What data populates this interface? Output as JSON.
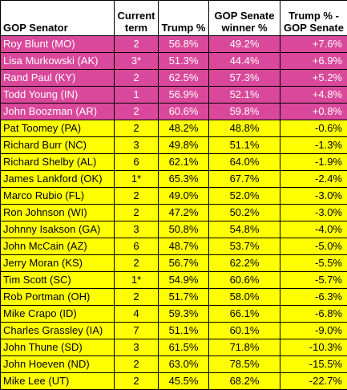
{
  "colors": {
    "positive_row": "#d9489a",
    "negative_row": "#ffff00",
    "positive_text": "#ffffff",
    "negative_text": "#000000",
    "header_bg": "#ffffff",
    "border": "#000000"
  },
  "headers": {
    "senator": "GOP Senator",
    "term_line1": "Current",
    "term_line2": "term",
    "trump": "Trump %",
    "winner_line1": "GOP Senate",
    "winner_line2": "winner %",
    "diff_line1": "Trump % -",
    "diff_line2": "GOP Senate"
  },
  "rows": [
    {
      "senator": "Roy Blunt (MO)",
      "term": "2",
      "trump": "56.8%",
      "winner": "49.2%",
      "diff": "+7.6%",
      "group": "positive"
    },
    {
      "senator": "Lisa Murkowski (AK)",
      "term": "3*",
      "trump": "51.3%",
      "winner": "44.4%",
      "diff": "+6.9%",
      "group": "positive"
    },
    {
      "senator": "Rand Paul (KY)",
      "term": "2",
      "trump": "62.5%",
      "winner": "57.3%",
      "diff": "+5.2%",
      "group": "positive"
    },
    {
      "senator": "Todd Young (IN)",
      "term": "1",
      "trump": "56.9%",
      "winner": "52.1%",
      "diff": "+4.8%",
      "group": "positive"
    },
    {
      "senator": "John Boozman (AR)",
      "term": "2",
      "trump": "60.6%",
      "winner": "59.8%",
      "diff": "+0.8%",
      "group": "positive"
    },
    {
      "senator": "Pat Toomey (PA)",
      "term": "2",
      "trump": "48.2%",
      "winner": "48.8%",
      "diff": "-0.6%",
      "group": "negative"
    },
    {
      "senator": "Richard Burr (NC)",
      "term": "3",
      "trump": "49.8%",
      "winner": "51.1%",
      "diff": "-1.3%",
      "group": "negative"
    },
    {
      "senator": "Richard Shelby (AL)",
      "term": "6",
      "trump": "62.1%",
      "winner": "64.0%",
      "diff": "-1.9%",
      "group": "negative"
    },
    {
      "senator": "James Lankford (OK)",
      "term": "1*",
      "trump": "65.3%",
      "winner": "67.7%",
      "diff": "-2.4%",
      "group": "negative"
    },
    {
      "senator": "Marco Rubio (FL)",
      "term": "2",
      "trump": "49.0%",
      "winner": "52.0%",
      "diff": "-3.0%",
      "group": "negative"
    },
    {
      "senator": "Ron Johnson (WI)",
      "term": "2",
      "trump": "47.2%",
      "winner": "50.2%",
      "diff": "-3.0%",
      "group": "negative"
    },
    {
      "senator": "Johnny Isakson (GA)",
      "term": "3",
      "trump": "50.8%",
      "winner": "54.8%",
      "diff": "-4.0%",
      "group": "negative"
    },
    {
      "senator": "John McCain (AZ)",
      "term": "6",
      "trump": "48.7%",
      "winner": "53.7%",
      "diff": "-5.0%",
      "group": "negative"
    },
    {
      "senator": "Jerry Moran (KS)",
      "term": "2",
      "trump": "56.7%",
      "winner": "62.2%",
      "diff": "-5.5%",
      "group": "negative"
    },
    {
      "senator": "Tim Scott (SC)",
      "term": "1*",
      "trump": "54.9%",
      "winner": "60.6%",
      "diff": "-5.7%",
      "group": "negative"
    },
    {
      "senator": "Rob Portman (OH)",
      "term": "2",
      "trump": "51.7%",
      "winner": "58.0%",
      "diff": "-6.3%",
      "group": "negative"
    },
    {
      "senator": "Mike Crapo (ID)",
      "term": "4",
      "trump": "59.3%",
      "winner": "66.1%",
      "diff": "-6.8%",
      "group": "negative"
    },
    {
      "senator": "Charles Grassley (IA)",
      "term": "7",
      "trump": "51.1%",
      "winner": "60.1%",
      "diff": "-9.0%",
      "group": "negative"
    },
    {
      "senator": "John Thune (SD)",
      "term": "3",
      "trump": "61.5%",
      "winner": "71.8%",
      "diff": "-10.3%",
      "group": "negative"
    },
    {
      "senator": "John Hoeven (ND)",
      "term": "2",
      "trump": "63.0%",
      "winner": "78.5%",
      "diff": "-15.5%",
      "group": "negative"
    },
    {
      "senator": "Mike Lee (UT)",
      "term": "2",
      "trump": "45.5%",
      "winner": "68.2%",
      "diff": "-22.7%",
      "group": "negative"
    }
  ]
}
